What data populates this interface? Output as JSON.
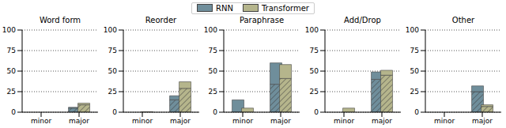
{
  "chart_data": [
    {
      "type": "bar",
      "title": "Word form",
      "stacked": true,
      "legend": "top",
      "grid": true,
      "categories": [
        "minor",
        "major"
      ],
      "ylim": [
        0,
        100
      ],
      "yticks": [
        0,
        25,
        50,
        75,
        100
      ],
      "series": [
        {
          "name": "RNN",
          "color": "#6f8e9b",
          "hatched": [
            0,
            5
          ],
          "values": [
            0,
            1
          ]
        },
        {
          "name": "Transformer",
          "color": "#b5b58c",
          "hatched": [
            0,
            9
          ],
          "values": [
            0,
            2
          ]
        }
      ]
    },
    {
      "type": "bar",
      "title": "Reorder",
      "stacked": true,
      "grid": true,
      "categories": [
        "minor",
        "major"
      ],
      "ylim": [
        0,
        100
      ],
      "yticks": [
        0,
        25,
        50,
        75,
        100
      ],
      "series": [
        {
          "name": "RNN",
          "color": "#6f8e9b",
          "hatched": [
            0,
            15
          ],
          "values": [
            0,
            5
          ]
        },
        {
          "name": "Transformer",
          "color": "#b5b58c",
          "hatched": [
            0,
            29
          ],
          "values": [
            0.5,
            8
          ]
        }
      ]
    },
    {
      "type": "bar",
      "title": "Paraphrase",
      "stacked": true,
      "grid": true,
      "categories": [
        "minor",
        "major"
      ],
      "ylim": [
        0,
        100
      ],
      "yticks": [
        0,
        25,
        50,
        75,
        100
      ],
      "series": [
        {
          "name": "RNN",
          "color": "#6f8e9b",
          "hatched": [
            0,
            34
          ],
          "values": [
            15,
            26
          ]
        },
        {
          "name": "Transformer",
          "color": "#b5b58c",
          "hatched": [
            0,
            41
          ],
          "values": [
            5,
            17
          ]
        }
      ]
    },
    {
      "type": "bar",
      "title": "Add/Drop",
      "stacked": true,
      "grid": true,
      "categories": [
        "minor",
        "major"
      ],
      "ylim": [
        0,
        100
      ],
      "yticks": [
        0,
        25,
        50,
        75,
        100
      ],
      "series": [
        {
          "name": "RNN",
          "color": "#6f8e9b",
          "hatched": [
            0,
            40
          ],
          "values": [
            0,
            9
          ]
        },
        {
          "name": "Transformer",
          "color": "#b5b58c",
          "hatched": [
            0,
            45
          ],
          "values": [
            5,
            6
          ]
        }
      ]
    },
    {
      "type": "bar",
      "title": "Other",
      "stacked": true,
      "grid": true,
      "categories": [
        "minor",
        "major"
      ],
      "ylim": [
        0,
        100
      ],
      "yticks": [
        0,
        25,
        50,
        75,
        100
      ],
      "series": [
        {
          "name": "RNN",
          "color": "#6f8e9b",
          "hatched": [
            0,
            25
          ],
          "values": [
            0,
            7
          ]
        },
        {
          "name": "Transformer",
          "color": "#b5b58c",
          "hatched": [
            0,
            7
          ],
          "values": [
            0,
            2
          ]
        }
      ]
    }
  ]
}
